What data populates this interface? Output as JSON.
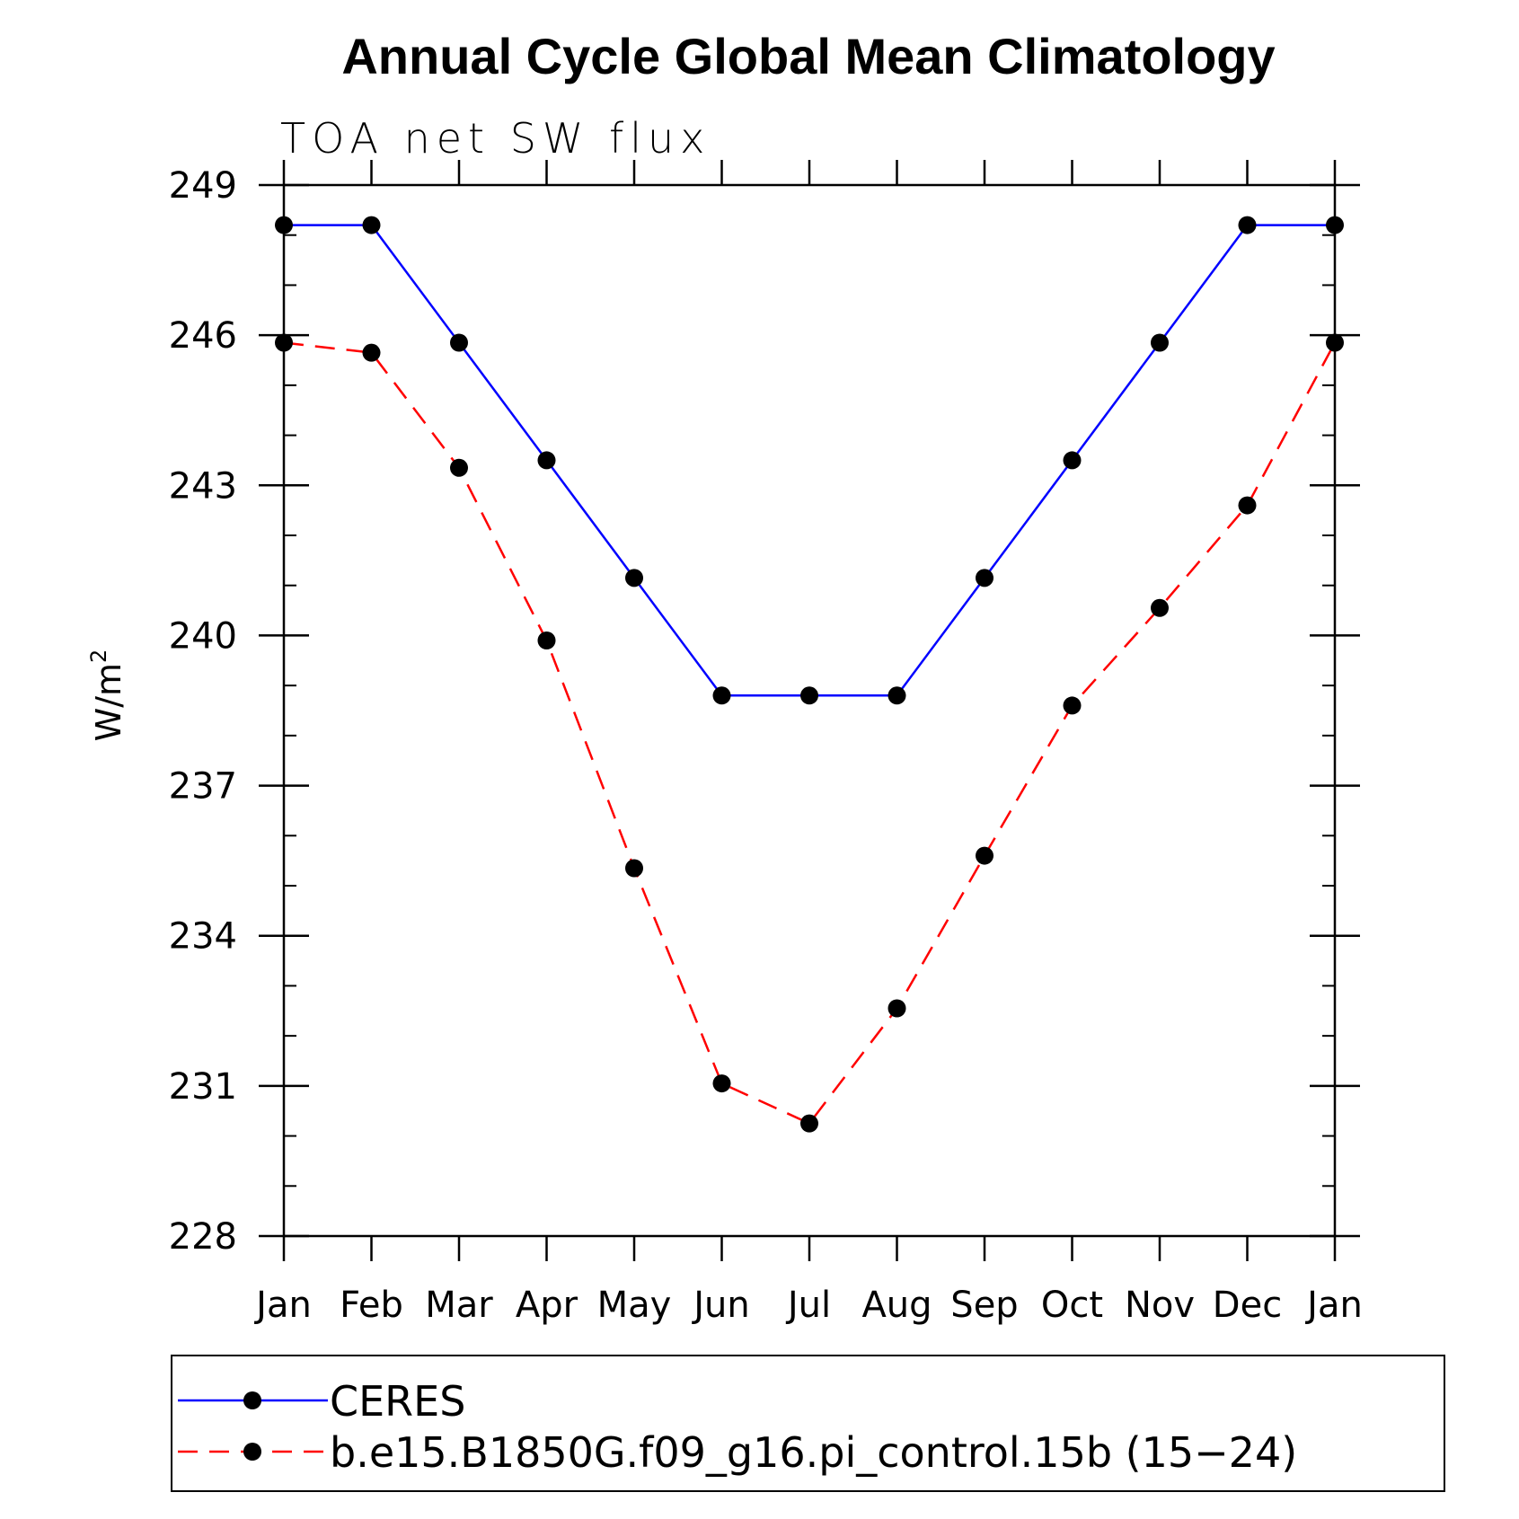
{
  "chart_data": {
    "type": "line",
    "title": "Annual Cycle Global Mean Climatology",
    "subtitle": "TOA net SW flux",
    "ylabel_base": "W/m",
    "ylabel_sup": "2",
    "categories": [
      "Jan",
      "Feb",
      "Mar",
      "Apr",
      "May",
      "Jun",
      "Jul",
      "Aug",
      "Sep",
      "Oct",
      "Nov",
      "Dec",
      "Jan"
    ],
    "ylim": [
      228,
      249
    ],
    "yticks": [
      "249",
      "246",
      "243",
      "240",
      "237",
      "234",
      "231",
      "228"
    ],
    "ytick_values": [
      249,
      246,
      243,
      240,
      237,
      234,
      231,
      228
    ],
    "grid": false,
    "legend_position": "bottom",
    "series": [
      {
        "name": "CERES",
        "color": "#0000ff",
        "dash": "solid",
        "values": [
          248.2,
          248.2,
          245.85,
          243.5,
          241.15,
          238.8,
          238.8,
          238.8,
          241.15,
          243.5,
          245.85,
          248.2,
          248.2
        ]
      },
      {
        "name": "b.e15.B1850G.f09_g16.pi_control.15b (15−24)",
        "color": "#ff0000",
        "dash": "dashed",
        "values": [
          245.85,
          245.65,
          243.35,
          239.9,
          235.35,
          231.05,
          230.25,
          232.55,
          235.6,
          238.6,
          240.55,
          242.6,
          245.85
        ]
      }
    ]
  }
}
